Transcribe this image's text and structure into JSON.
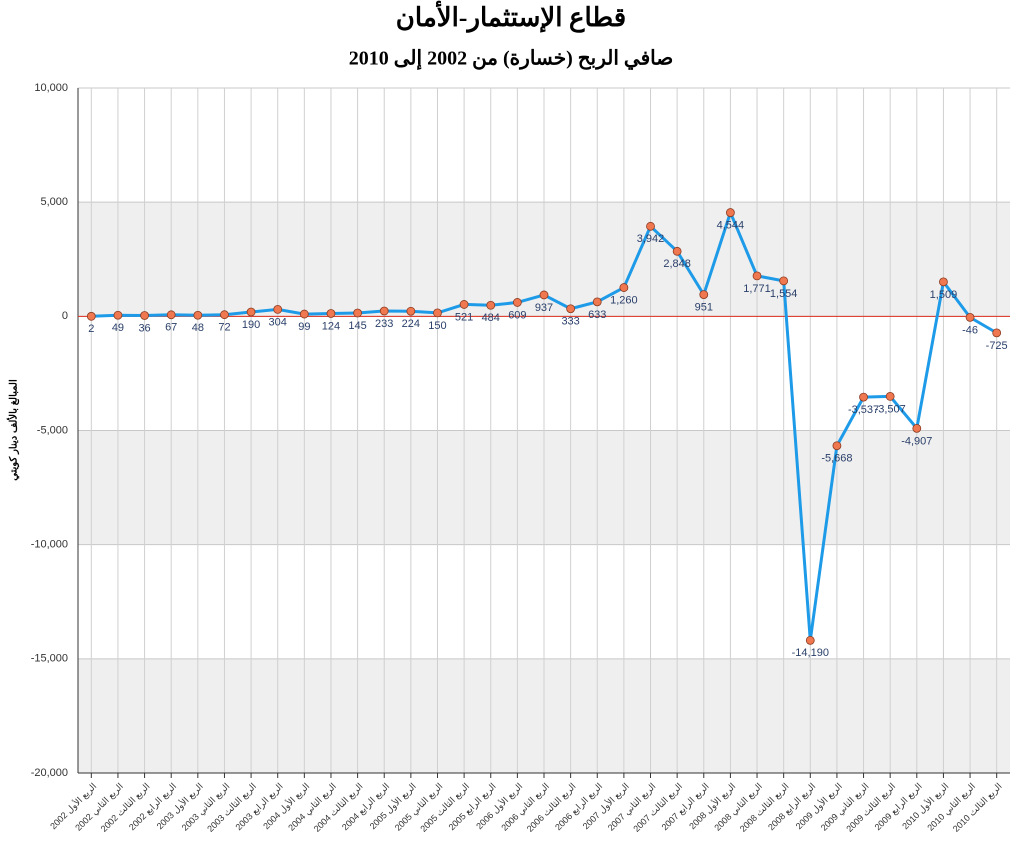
{
  "chart_data": {
    "type": "line",
    "title": "قطاع الإستثمار-الأمان",
    "subtitle": "صافي الربح (خسارة) من 2002 إلى 2010",
    "y_label": "المبالغ بالألف دينار كويتي",
    "categories": [
      "الربع الأول 2002",
      "الربع الثاني 2002",
      "الربع الثالث 2002",
      "الربع الرابع 2002",
      "الربع الأول 2003",
      "الربع الثاني 2003",
      "الربع الثالث 2003",
      "الربع الرابع 2003",
      "الربع الأول 2004",
      "الربع الثاني 2004",
      "الربع الثالث 2004",
      "الربع الرابع 2004",
      "الربع الأول 2005",
      "الربع الثاني 2005",
      "الربع الثالث 2005",
      "الربع الرابع 2005",
      "الربع الأول 2006",
      "الربع الثاني 2006",
      "الربع الثالث 2006",
      "الربع الرابع 2006",
      "الربع الأول 2007",
      "الربع الثاني 2007",
      "الربع الثالث 2007",
      "الربع الرابع 2007",
      "الربع الأول 2008",
      "الربع الثاني 2008",
      "الربع الثالث 2008",
      "الربع الرابع 2008",
      "الربع الأول 2009",
      "الربع الثاني 2009",
      "الربع الثالث 2009",
      "الربع الرابع 2009",
      "الربع الأول 2010",
      "الربع الثاني 2010",
      "الربع الثالث 2010"
    ],
    "values": [
      2,
      49,
      36,
      67,
      48,
      72,
      190,
      304,
      99,
      124,
      145,
      233,
      224,
      150,
      521,
      484,
      609,
      937,
      333,
      633,
      1260,
      3942,
      2848,
      951,
      4544,
      1771,
      1554,
      -14190,
      -5668,
      -3537,
      -3507,
      -4907,
      1509,
      -46,
      -725
    ],
    "value_labels": [
      "2",
      "49",
      "36",
      "67",
      "48",
      "72",
      "190",
      "304",
      "99",
      "124",
      "145",
      "233",
      "224",
      "150",
      "521",
      "484",
      "609",
      "937",
      "333",
      "633",
      "1,260",
      "3,942",
      "2,848",
      "951",
      "4,544",
      "1,771",
      "1,554",
      "-14,190",
      "-5,668",
      "-3,537",
      "-3,507",
      "-4,907",
      "1,509",
      "-46",
      "-725"
    ],
    "color": "#1e9be8",
    "marker_color": "#f07850",
    "ylim": [
      -20000,
      10000
    ],
    "yticks": [
      {
        "value": -20000,
        "label": "-20,000"
      },
      {
        "value": -15000,
        "label": "-15,000"
      },
      {
        "value": -10000,
        "label": "-10,000"
      },
      {
        "value": -5000,
        "label": "-5,000"
      },
      0,
      {
        "value": 5000,
        "label": "5,000"
      },
      {
        "value": 10000,
        "label": "10,000"
      }
    ],
    "grid": true
  }
}
